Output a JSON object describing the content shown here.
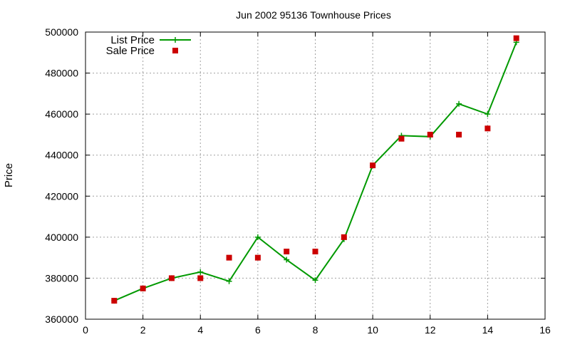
{
  "chart_data": {
    "type": "line",
    "title": "Jun 2002 95136 Townhouse Prices",
    "xlabel": "",
    "ylabel": "Price",
    "xlim": [
      0,
      16
    ],
    "ylim": [
      360000,
      500000
    ],
    "xticks": [
      0,
      2,
      4,
      6,
      8,
      10,
      12,
      14,
      16
    ],
    "yticks": [
      360000,
      380000,
      400000,
      420000,
      440000,
      460000,
      480000,
      500000
    ],
    "grid": true,
    "legend_position": "top-left",
    "series": [
      {
        "name": "List Price",
        "style": "line-with-plus-markers",
        "color": "#009900",
        "x": [
          1,
          2,
          3,
          4,
          5,
          6,
          7,
          8,
          9,
          10,
          11,
          12,
          13,
          14,
          15
        ],
        "y": [
          369000,
          375000,
          380000,
          383000,
          378500,
          400000,
          389000,
          379000,
          399000,
          435000,
          449500,
          449000,
          465000,
          460000,
          495000
        ]
      },
      {
        "name": "Sale Price",
        "style": "square-markers",
        "color": "#cc0000",
        "x": [
          1,
          2,
          3,
          4,
          5,
          6,
          7,
          8,
          9,
          10,
          11,
          12,
          13,
          14,
          15
        ],
        "y": [
          369000,
          375000,
          380000,
          380000,
          390000,
          390000,
          393000,
          393000,
          400000,
          435000,
          448000,
          450000,
          450000,
          453000,
          497000
        ]
      }
    ]
  }
}
